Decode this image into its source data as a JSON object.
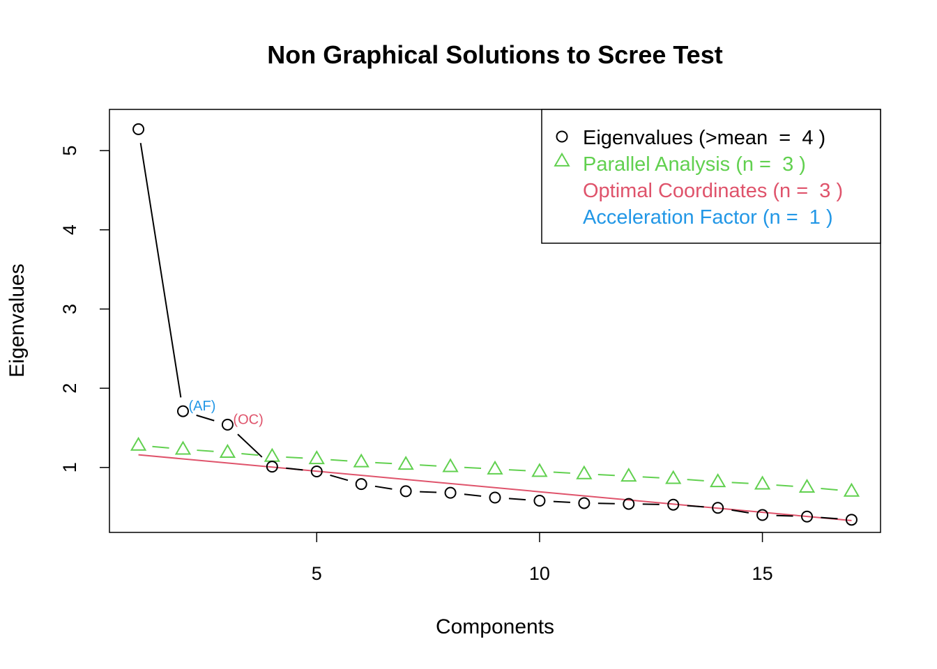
{
  "chart_data": {
    "type": "line",
    "title": "Non Graphical Solutions to Scree Test",
    "xlabel": "Components",
    "ylabel": "Eigenvalues",
    "xlim": [
      0.35,
      17.65
    ],
    "ylim": [
      0.18,
      5.52
    ],
    "xticks": [
      5,
      10,
      15
    ],
    "yticks": [
      1,
      2,
      3,
      4,
      5
    ],
    "grid": false,
    "legend_position": "top-right",
    "series": [
      {
        "name": "Eigenvalues (>mean  =  4 )",
        "key": "eigen",
        "color": "#000000",
        "marker": "circle",
        "x": [
          1,
          2,
          3,
          4,
          5,
          6,
          7,
          8,
          9,
          10,
          11,
          12,
          13,
          14,
          15,
          16,
          17
        ],
        "values": [
          5.27,
          1.71,
          1.54,
          1.01,
          0.95,
          0.79,
          0.7,
          0.68,
          0.62,
          0.58,
          0.55,
          0.54,
          0.53,
          0.49,
          0.4,
          0.38,
          0.34
        ]
      },
      {
        "name": "Parallel Analysis (n =  3 )",
        "key": "parallel",
        "color": "#61d04f",
        "marker": "triangle",
        "x": [
          1,
          2,
          3,
          4,
          5,
          6,
          7,
          8,
          9,
          10,
          11,
          12,
          13,
          14,
          15,
          16,
          17
        ],
        "values": [
          1.28,
          1.23,
          1.19,
          1.14,
          1.11,
          1.07,
          1.04,
          1.01,
          0.98,
          0.95,
          0.92,
          0.89,
          0.86,
          0.82,
          0.79,
          0.75,
          0.7
        ]
      },
      {
        "name": "Optimal Coordinates (n =  3 )",
        "key": "oc",
        "color": "#df536b",
        "marker": "none",
        "x": [
          1,
          17
        ],
        "values": [
          1.16,
          0.33
        ]
      },
      {
        "name": "Acceleration Factor (n =  1 )",
        "key": "af",
        "color": "#2297e6",
        "marker": "none"
      }
    ],
    "annotations": [
      {
        "text": "(AF)",
        "x": 2,
        "y": 1.71,
        "color": "#2297e6"
      },
      {
        "text": "(OC)",
        "x": 3,
        "y": 1.54,
        "color": "#df536b"
      }
    ]
  }
}
